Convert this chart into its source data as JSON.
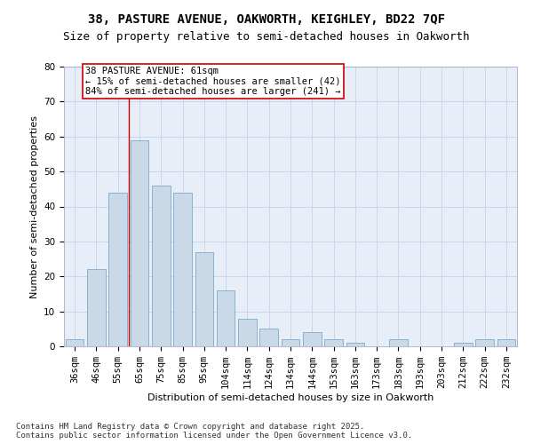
{
  "title": "38, PASTURE AVENUE, OAKWORTH, KEIGHLEY, BD22 7QF",
  "subtitle": "Size of property relative to semi-detached houses in Oakworth",
  "xlabel": "Distribution of semi-detached houses by size in Oakworth",
  "ylabel": "Number of semi-detached properties",
  "categories": [
    "36sqm",
    "46sqm",
    "55sqm",
    "65sqm",
    "75sqm",
    "85sqm",
    "95sqm",
    "104sqm",
    "114sqm",
    "124sqm",
    "134sqm",
    "144sqm",
    "153sqm",
    "163sqm",
    "173sqm",
    "183sqm",
    "193sqm",
    "203sqm",
    "212sqm",
    "222sqm",
    "232sqm"
  ],
  "values": [
    2,
    22,
    44,
    59,
    46,
    44,
    27,
    16,
    8,
    5,
    2,
    4,
    2,
    1,
    0,
    2,
    0,
    0,
    1,
    2,
    2
  ],
  "bar_color": "#c9d9e8",
  "bar_edge_color": "#7aaac8",
  "grid_color": "#cdd6e8",
  "background_color": "#e8eef8",
  "red_line_x": 2.5,
  "annotation_text": "38 PASTURE AVENUE: 61sqm\n← 15% of semi-detached houses are smaller (42)\n84% of semi-detached houses are larger (241) →",
  "annotation_box_color": "#ffffff",
  "annotation_edge_color": "#cc0000",
  "ylim": [
    0,
    80
  ],
  "yticks": [
    0,
    10,
    20,
    30,
    40,
    50,
    60,
    70,
    80
  ],
  "footer": "Contains HM Land Registry data © Crown copyright and database right 2025.\nContains public sector information licensed under the Open Government Licence v3.0.",
  "title_fontsize": 10,
  "subtitle_fontsize": 9,
  "axis_label_fontsize": 8,
  "tick_fontsize": 7.5,
  "annotation_fontsize": 7.5,
  "footer_fontsize": 6.5
}
